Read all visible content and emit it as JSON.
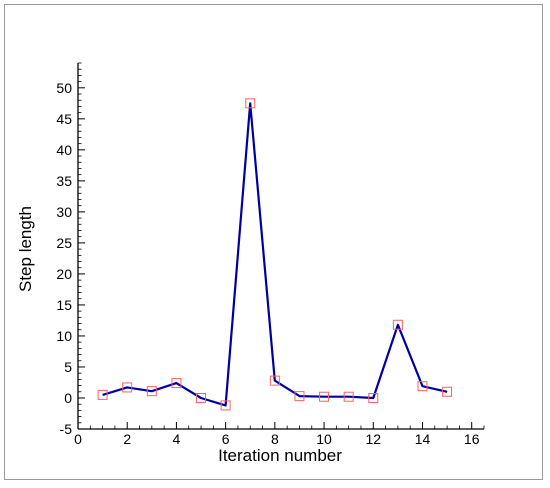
{
  "chart_data": {
    "type": "line",
    "xlabel": "Iteration number",
    "ylabel": "Step length",
    "xlim": [
      0,
      16.5
    ],
    "ylim": [
      -5,
      54
    ],
    "xticks": [
      0,
      2,
      4,
      6,
      8,
      10,
      12,
      14,
      16
    ],
    "yticks": [
      -5,
      0,
      5,
      10,
      15,
      20,
      25,
      30,
      35,
      40,
      45,
      50
    ],
    "grid": false,
    "series": [
      {
        "x": [
          1,
          2,
          3,
          4,
          5,
          6,
          7,
          8,
          9,
          10,
          11,
          12,
          13,
          14,
          15
        ],
        "values": [
          0.5,
          1.7,
          1.1,
          2.4,
          0.0,
          -1.2,
          47.5,
          2.8,
          0.3,
          0.2,
          0.2,
          0.0,
          11.8,
          1.9,
          1.0
        ],
        "line_color": "#0000a0",
        "marker": "square",
        "marker_color": "#ff6060"
      }
    ]
  }
}
